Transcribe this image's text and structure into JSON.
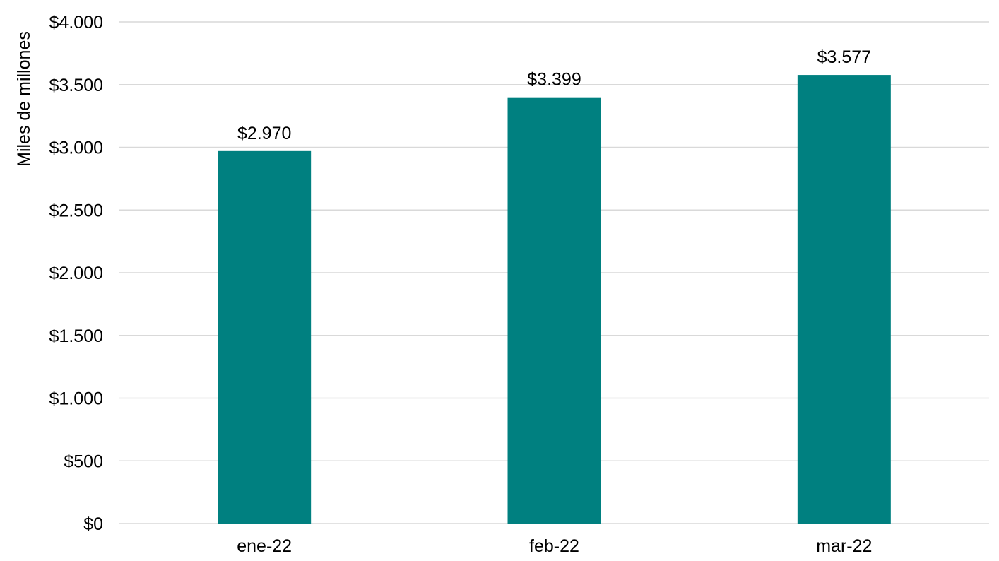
{
  "chart_data": {
    "type": "bar",
    "title": "",
    "xlabel": "",
    "ylabel": "Miles de millones",
    "categories": [
      "ene-22",
      "feb-22",
      "mar-22"
    ],
    "values": [
      2970,
      3399,
      3577
    ],
    "data_labels": [
      "$2.970",
      "$3.399",
      "$3.577"
    ],
    "ylim": [
      0,
      4000
    ],
    "yticks": [
      0,
      500,
      1000,
      1500,
      2000,
      2500,
      3000,
      3500,
      4000
    ],
    "ytick_labels": [
      "$0",
      "$500",
      "$1.000",
      "$1.500",
      "$2.000",
      "$2.500",
      "$3.000",
      "$3.500",
      "$4.000"
    ],
    "bar_color": "#008080",
    "grid": true,
    "legend": "none"
  }
}
